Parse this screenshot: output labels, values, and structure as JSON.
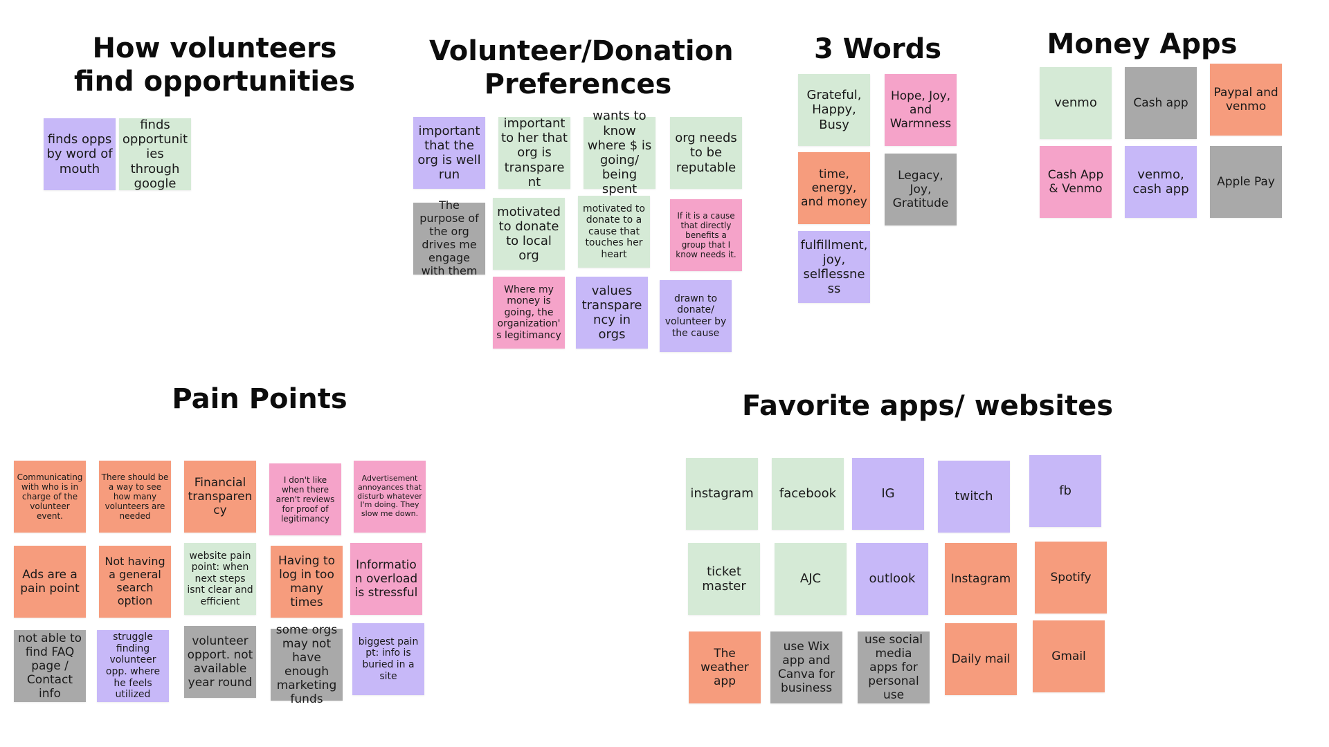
{
  "colors": {
    "green": "#d5ead6",
    "purple": "#c7b8f8",
    "gray": "#a9a9a9",
    "orange": "#f69c7d",
    "pink": "#f5a3c9"
  },
  "sections": {
    "find_opps": {
      "title": "How volunteers find opportunities",
      "notes": [
        {
          "text": "finds opps by word of mouth",
          "color": "purple"
        },
        {
          "text": "finds opportunities through google",
          "color": "green"
        }
      ]
    },
    "preferences": {
      "title": "Volunteer/Donation Preferences",
      "notes": [
        {
          "text": "important that the org is well run",
          "color": "purple"
        },
        {
          "text": "important to her that org is transparent",
          "color": "green"
        },
        {
          "text": "wants to know where $ is going/ being spent",
          "color": "green"
        },
        {
          "text": "org needs to be reputable",
          "color": "green"
        },
        {
          "text": "The purpose of the org drives me engage with them",
          "color": "gray"
        },
        {
          "text": "motivated to donate to local org",
          "color": "green"
        },
        {
          "text": "motivated to donate to a cause that touches her heart",
          "color": "green"
        },
        {
          "text": "If it is a cause that directly benefits a group that I know needs it.",
          "color": "pink"
        },
        {
          "text": "Where my money is going, the organization's legitimancy",
          "color": "pink"
        },
        {
          "text": "values transparency in orgs",
          "color": "purple"
        },
        {
          "text": "drawn to donate/ volunteer by the cause",
          "color": "purple"
        }
      ]
    },
    "three_words": {
      "title": "3 Words",
      "notes": [
        {
          "text": "Grateful, Happy, Busy",
          "color": "green"
        },
        {
          "text": "Hope, Joy, and Warmness",
          "color": "pink"
        },
        {
          "text": "time, energy, and money",
          "color": "orange"
        },
        {
          "text": "Legacy, Joy, Gratitude",
          "color": "gray"
        },
        {
          "text": "fulfillment, joy, selflessness",
          "color": "purple"
        }
      ]
    },
    "money_apps": {
      "title": "Money Apps",
      "notes": [
        {
          "text": "venmo",
          "color": "green"
        },
        {
          "text": "Cash app",
          "color": "gray"
        },
        {
          "text": "Paypal and venmo",
          "color": "orange"
        },
        {
          "text": "Cash App & Venmo",
          "color": "pink"
        },
        {
          "text": "venmo, cash app",
          "color": "purple"
        },
        {
          "text": "Apple Pay",
          "color": "gray"
        }
      ]
    },
    "pain_points": {
      "title": "Pain Points",
      "notes": [
        {
          "text": "Communicating with who is in charge of the volunteer event.",
          "color": "orange"
        },
        {
          "text": "There should be a way to see how many volunteers are needed",
          "color": "orange"
        },
        {
          "text": "Financial transparency",
          "color": "orange"
        },
        {
          "text": "I don't like when there aren't reviews for proof of legitimancy",
          "color": "pink"
        },
        {
          "text": "Advertisement annoyances that disturb whatever I'm doing. They slow me down.",
          "color": "pink"
        },
        {
          "text": "Ads are a pain point",
          "color": "orange"
        },
        {
          "text": "Not having a general search option",
          "color": "orange"
        },
        {
          "text": "website pain point: when next steps isnt clear and efficient",
          "color": "green"
        },
        {
          "text": "Having to log in too many times",
          "color": "orange"
        },
        {
          "text": "Information overload is stressful",
          "color": "pink"
        },
        {
          "text": "not able to find FAQ page / Contact info",
          "color": "gray"
        },
        {
          "text": "struggle finding volunteer opp. where he feels utilized",
          "color": "purple"
        },
        {
          "text": "volunteer opport. not available year round",
          "color": "gray"
        },
        {
          "text": "some orgs may not have enough marketing funds",
          "color": "gray"
        },
        {
          "text": "biggest pain pt: info is buried in a site",
          "color": "purple"
        }
      ]
    },
    "favorite_apps": {
      "title": "Favorite apps/ websites",
      "notes": [
        {
          "text": "instagram",
          "color": "green"
        },
        {
          "text": "facebook",
          "color": "green"
        },
        {
          "text": "IG",
          "color": "purple"
        },
        {
          "text": "twitch",
          "color": "purple"
        },
        {
          "text": "fb",
          "color": "purple"
        },
        {
          "text": "ticket master",
          "color": "green"
        },
        {
          "text": "AJC",
          "color": "green"
        },
        {
          "text": "outlook",
          "color": "purple"
        },
        {
          "text": "Instagram",
          "color": "orange"
        },
        {
          "text": "Spotify",
          "color": "orange"
        },
        {
          "text": "The weather app",
          "color": "orange"
        },
        {
          "text": "use Wix app and Canva for business",
          "color": "gray"
        },
        {
          "text": "use social media apps for personal use",
          "color": "gray"
        },
        {
          "text": "Daily mail",
          "color": "orange"
        },
        {
          "text": "Gmail",
          "color": "orange"
        }
      ]
    }
  }
}
